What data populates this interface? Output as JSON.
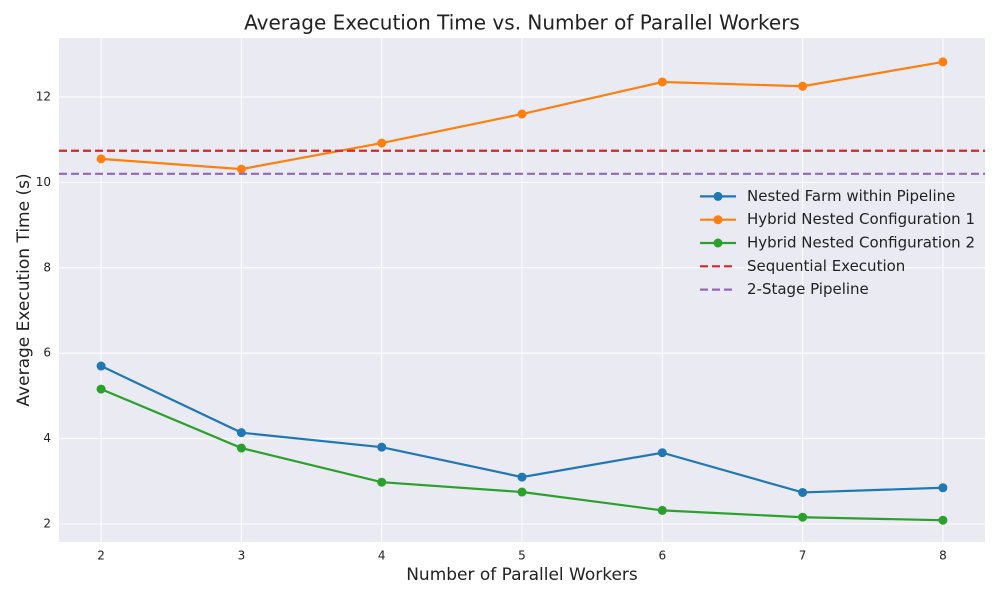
{
  "chart_data": {
    "type": "line",
    "title": "Average Execution Time vs. Number of Parallel Workers",
    "x_label": "Number of Parallel Workers",
    "y_label": "Average Execution Time (s)",
    "x": [
      2,
      3,
      4,
      5,
      6,
      7,
      8
    ],
    "series": [
      {
        "name": "Nested Farm within Pipeline",
        "color": "#1f77b4",
        "values": [
          5.7,
          4.14,
          3.8,
          3.1,
          3.67,
          2.74,
          2.85
        ]
      },
      {
        "name": "Hybrid Nested Configuration 1",
        "color": "#ff7f0e",
        "values": [
          10.55,
          10.31,
          10.92,
          11.6,
          12.35,
          12.25,
          12.82
        ]
      },
      {
        "name": "Hybrid Nested Configuration 2",
        "color": "#2ca02c",
        "values": [
          5.16,
          3.78,
          2.98,
          2.75,
          2.32,
          2.16,
          2.09
        ]
      }
    ],
    "reference_lines": [
      {
        "name": "Sequential Execution",
        "color": "#d62728",
        "value": 10.74
      },
      {
        "name": "2-Stage Pipeline",
        "color": "#9467bd",
        "value": 10.2
      }
    ],
    "xlim": [
      1.7,
      8.3
    ],
    "ylim": [
      1.58,
      13.38
    ],
    "xticks": [
      2,
      3,
      4,
      5,
      6,
      7,
      8
    ],
    "yticks": [
      2,
      4,
      6,
      8,
      10,
      12
    ],
    "grid": true,
    "legend": "center right"
  }
}
